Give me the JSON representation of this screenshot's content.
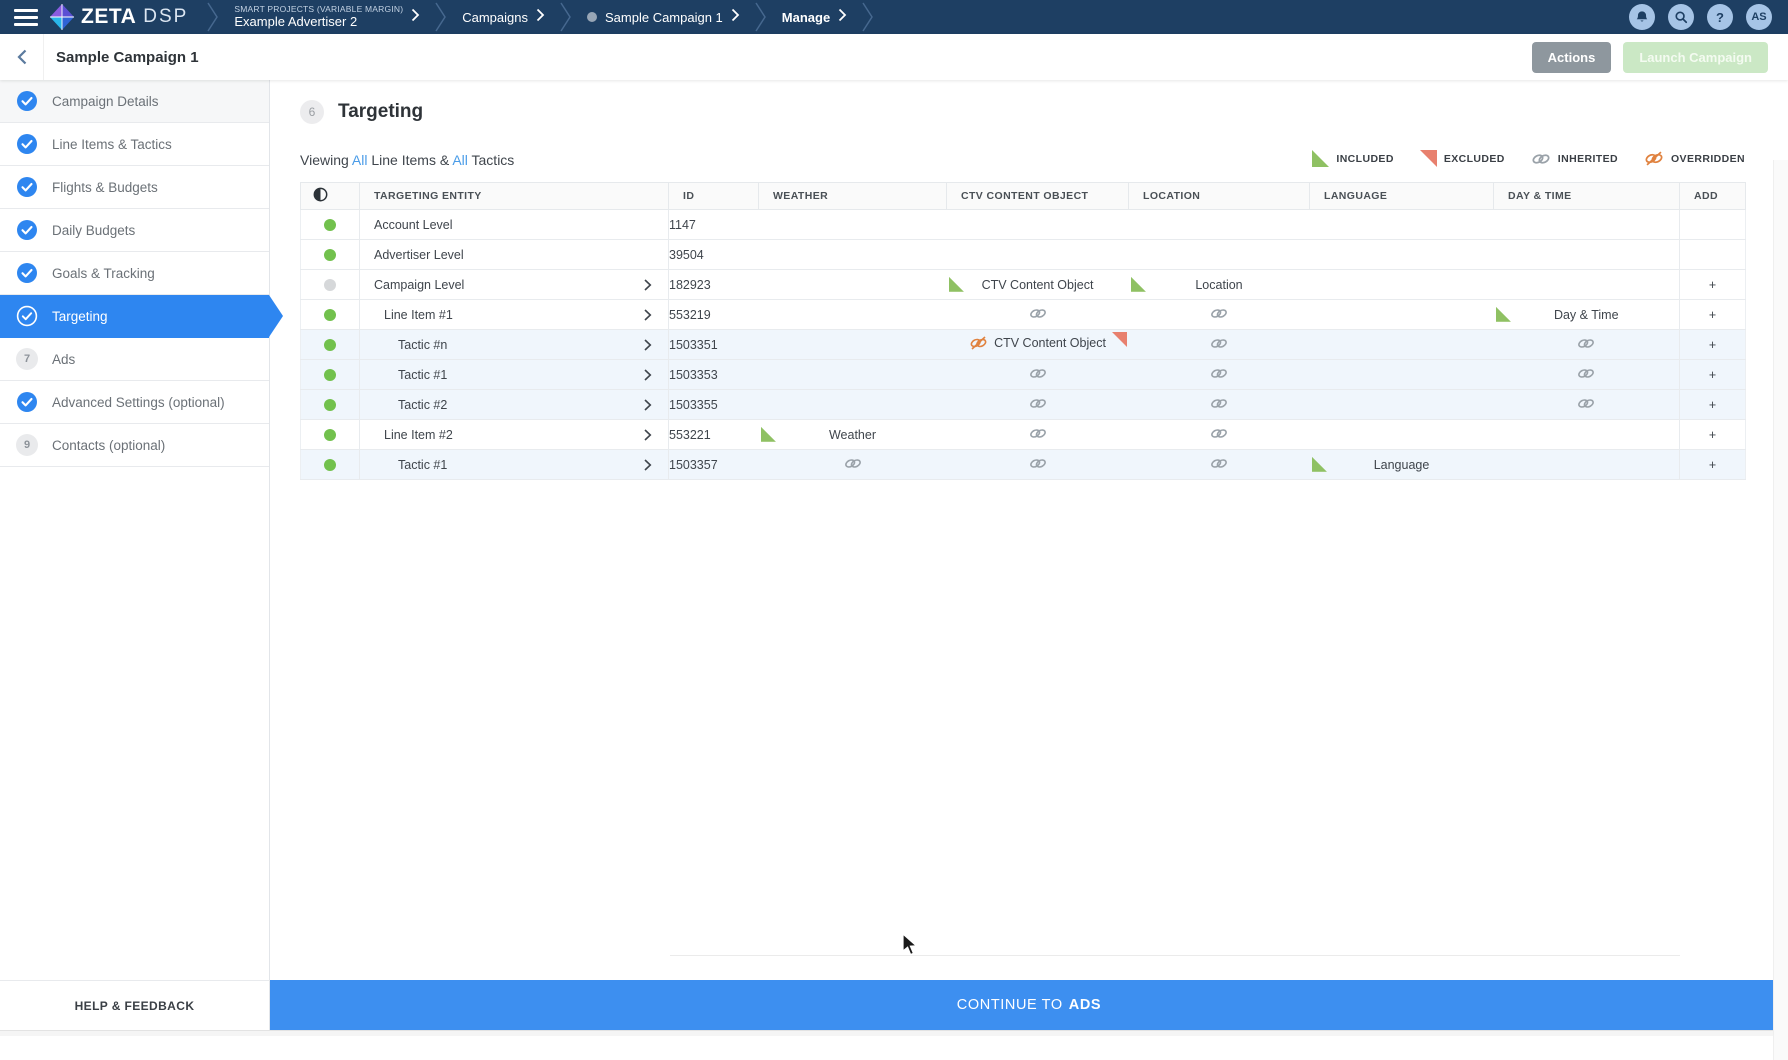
{
  "topnav": {
    "brand_zeta": "ZETA",
    "brand_dsp": "DSP",
    "breadcrumbs": [
      {
        "eyebrow": "SMART PROJECTS (VARIABLE MARGIN)",
        "label": "Example Advertiser 2"
      },
      {
        "label": "Campaigns"
      },
      {
        "label": "Sample Campaign 1",
        "has_dot": true
      },
      {
        "label": "Manage",
        "bold": true
      }
    ],
    "avatar_initials": "AS",
    "help_glyph": "?"
  },
  "subheader": {
    "title": "Sample Campaign 1",
    "actions_label": "Actions",
    "launch_label": "Launch Campaign"
  },
  "sidebar": {
    "items": [
      {
        "label": "Campaign Details",
        "state": "done"
      },
      {
        "label": "Line Items & Tactics",
        "state": "done"
      },
      {
        "label": "Flights & Budgets",
        "state": "done"
      },
      {
        "label": "Daily Budgets",
        "state": "done"
      },
      {
        "label": "Goals & Tracking",
        "state": "done"
      },
      {
        "label": "Targeting",
        "state": "active"
      },
      {
        "label": "Ads",
        "state": "todo",
        "number": "7"
      },
      {
        "label": "Advanced Settings (optional)",
        "state": "done"
      },
      {
        "label": "Contacts (optional)",
        "state": "todo",
        "number": "9"
      }
    ],
    "help_label": "HELP & FEEDBACK"
  },
  "main": {
    "step_number": "6",
    "title": "Targeting",
    "viewing": {
      "p1": "Viewing",
      "all1": "All",
      "p2": "Line Items &",
      "all2": "All",
      "p3": "Tactics"
    },
    "legend": [
      {
        "type": "included",
        "label": "INCLUDED"
      },
      {
        "type": "excluded",
        "label": "EXCLUDED"
      },
      {
        "type": "inherited",
        "label": "INHERITED"
      },
      {
        "type": "overridden",
        "label": "OVERRIDDEN"
      }
    ],
    "table": {
      "columns": [
        "TARGETING ENTITY",
        "ID",
        "WEATHER",
        "CTV CONTENT OBJECT",
        "LOCATION",
        "LANGUAGE",
        "DAY & TIME",
        "ADD"
      ],
      "rows": [
        {
          "entity": "Account Level",
          "level": 0,
          "dot": "green",
          "chevron": false,
          "id": "1147",
          "tint": false,
          "add": false,
          "cells": {}
        },
        {
          "entity": "Advertiser Level",
          "level": 0,
          "dot": "green",
          "chevron": false,
          "id": "39504",
          "tint": false,
          "add": false,
          "cells": {}
        },
        {
          "entity": "Campaign Level",
          "level": 0,
          "dot": "gray",
          "chevron": true,
          "id": "182923",
          "tint": false,
          "add": true,
          "cells": {
            "ctv": {
              "marker": "included",
              "text": "CTV Content Object"
            },
            "location": {
              "marker": "included",
              "text": "Location"
            }
          }
        },
        {
          "entity": "Line Item #1",
          "level": 1,
          "dot": "green",
          "chevron": true,
          "id": "553219",
          "tint": false,
          "add": true,
          "cells": {
            "ctv": {
              "icon": "inherited"
            },
            "location": {
              "icon": "inherited"
            },
            "daytime": {
              "marker": "included",
              "text": "Day & Time"
            }
          }
        },
        {
          "entity": "Tactic #n",
          "level": 2,
          "dot": "green",
          "chevron": true,
          "id": "1503351",
          "tint": true,
          "add": true,
          "cells": {
            "ctv": {
              "icon": "overridden",
              "text": "CTV Content Object",
              "corner": "excluded"
            },
            "location": {
              "icon": "inherited"
            },
            "daytime": {
              "icon": "inherited"
            }
          }
        },
        {
          "entity": "Tactic #1",
          "level": 2,
          "dot": "green",
          "chevron": true,
          "id": "1503353",
          "tint": true,
          "add": true,
          "cells": {
            "ctv": {
              "icon": "inherited"
            },
            "location": {
              "icon": "inherited"
            },
            "daytime": {
              "icon": "inherited"
            }
          }
        },
        {
          "entity": "Tactic #2",
          "level": 2,
          "dot": "green",
          "chevron": true,
          "id": "1503355",
          "tint": true,
          "add": true,
          "cells": {
            "ctv": {
              "icon": "inherited"
            },
            "location": {
              "icon": "inherited"
            },
            "daytime": {
              "icon": "inherited"
            }
          }
        },
        {
          "entity": "Line Item #2",
          "level": 1,
          "dot": "green",
          "chevron": true,
          "id": "553221",
          "tint": false,
          "add": true,
          "cells": {
            "weather": {
              "marker": "included",
              "text": "Weather"
            },
            "ctv": {
              "icon": "inherited"
            },
            "location": {
              "icon": "inherited"
            }
          }
        },
        {
          "entity": "Tactic #1",
          "level": 2,
          "dot": "green",
          "chevron": true,
          "id": "1503357",
          "tint": true,
          "add": true,
          "cells": {
            "weather": {
              "icon": "inherited"
            },
            "ctv": {
              "icon": "inherited"
            },
            "location": {
              "icon": "inherited"
            },
            "language": {
              "marker": "included",
              "text": "Language"
            }
          }
        }
      ]
    }
  },
  "footer": {
    "continue_prefix": "CONTINUE TO",
    "continue_bold": "ADS"
  },
  "colors": {
    "navy": "#1e3f63",
    "accent_blue": "#2e86f0",
    "link_blue": "#4a9ce8",
    "included_green": "#8fc163",
    "excluded_red": "#e8806e",
    "inherited_gray": "#9aa2a9",
    "overridden_orange": "#e0823f",
    "dot_green": "#72c14d",
    "footer_blue": "#3d8ff0"
  }
}
